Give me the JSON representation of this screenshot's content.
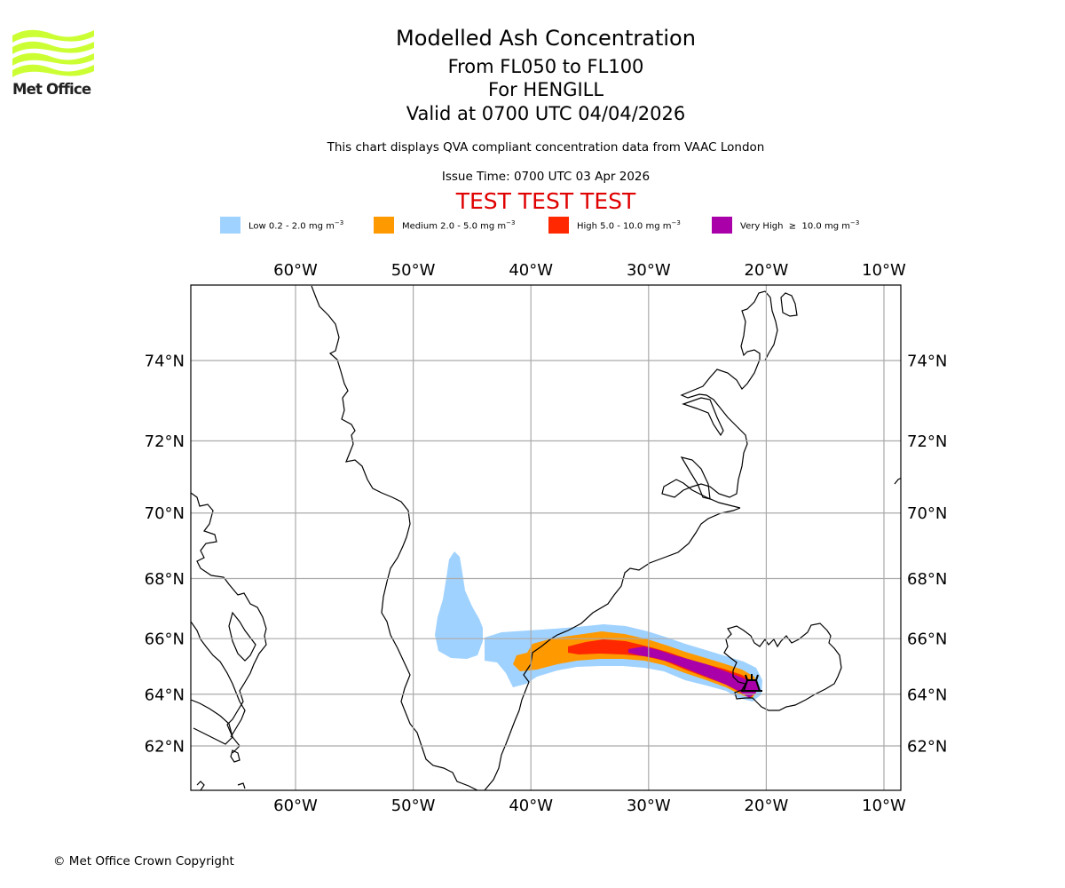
{
  "header": {
    "title": "Modelled Ash Concentration",
    "levels": "From FL050 to FL100",
    "volcano": "For HENGILL",
    "valid": "Valid at 0700 UTC 04/04/2026",
    "subtitle": "This chart displays QVA compliant concentration data from VAAC London",
    "issue_time": "Issue Time: 0700 UTC 03 Apr 2026",
    "test_banner": "TEST TEST TEST",
    "test_color": "#e00000"
  },
  "logo": {
    "text": "Met Office",
    "icon": "met-office-waves-logo",
    "color": "#ccff33"
  },
  "legend": [
    {
      "name": "Low",
      "range": "0.2 - 2.0",
      "unit": "mg m",
      "exp": "−3",
      "label": "Low 0.2 - 2.0 mg m",
      "color": "#a0d2ff"
    },
    {
      "name": "Medium",
      "range": "2.0 - 5.0",
      "unit": "mg m",
      "exp": "−3",
      "label": "Medium 2.0 - 5.0 mg m",
      "color": "#ff9900"
    },
    {
      "name": "High",
      "range": "5.0 - 10.0",
      "unit": "mg m",
      "exp": "−3",
      "label": "High 5.0 - 10.0 mg m",
      "color": "#ff2800"
    },
    {
      "name": "Very High",
      "range": "≥ 10.0",
      "unit": "mg m",
      "exp": "−3",
      "label": "Very High  ≥  10.0 mg m",
      "color": "#aa00aa"
    }
  ],
  "map": {
    "lon_range": [
      -68.9,
      -8.6
    ],
    "lat_range": [
      60.8,
      75.9
    ],
    "lon_ticks": [
      {
        "value": -60,
        "label": "60°W"
      },
      {
        "value": -50,
        "label": "50°W"
      },
      {
        "value": -40,
        "label": "40°W"
      },
      {
        "value": -30,
        "label": "30°W"
      },
      {
        "value": -20,
        "label": "20°W"
      },
      {
        "value": -10,
        "label": "10°W"
      }
    ],
    "lat_ticks": [
      {
        "value": 74,
        "label": "74°N"
      },
      {
        "value": 72,
        "label": "72°N"
      },
      {
        "value": 70,
        "label": "70°N"
      },
      {
        "value": 68,
        "label": "68°N"
      },
      {
        "value": 66,
        "label": "66°N"
      },
      {
        "value": 64,
        "label": "64°N"
      },
      {
        "value": 62,
        "label": "62°N"
      }
    ],
    "gridline_color": "#aaaaaa",
    "volcano_marker": {
      "name": "HENGILL",
      "lat": 64.1,
      "lon": -21.3,
      "icon": "volcano-icon"
    }
  },
  "footer": {
    "copyright": "© Met Office Crown Copyright"
  }
}
